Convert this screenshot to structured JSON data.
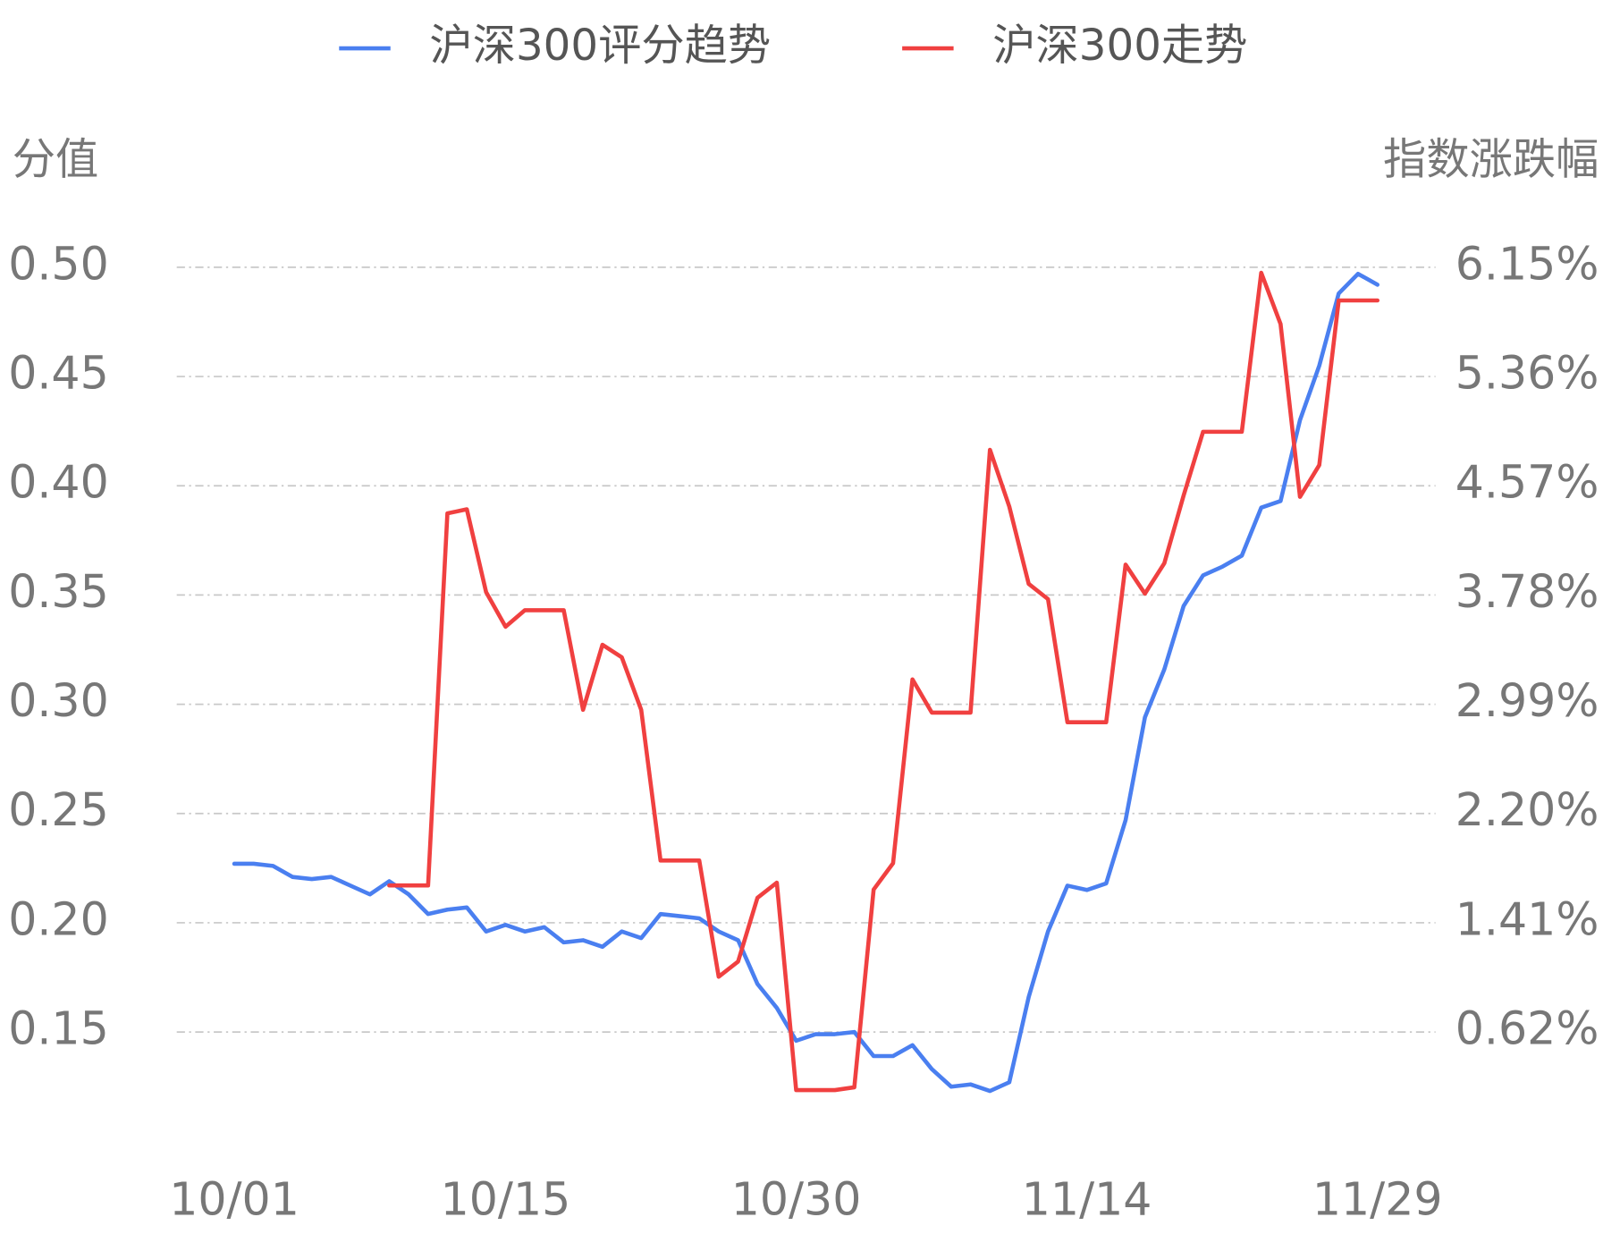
{
  "chart_data": {
    "type": "line",
    "ylabel": "分值",
    "y2label": "指数涨跌幅",
    "categories": [
      "10/01",
      null,
      null,
      null,
      null,
      null,
      null,
      null,
      null,
      null,
      null,
      null,
      null,
      null,
      "10/15",
      null,
      null,
      null,
      null,
      null,
      null,
      null,
      null,
      null,
      null,
      null,
      null,
      null,
      null,
      "10/30",
      null,
      null,
      null,
      null,
      null,
      null,
      null,
      null,
      null,
      null,
      null,
      null,
      null,
      null,
      "11/14",
      null,
      null,
      null,
      null,
      null,
      null,
      null,
      null,
      null,
      null,
      null,
      null,
      null,
      null,
      "11/29"
    ],
    "series": [
      {
        "name": "沪深300评分趋势",
        "color": "#4a7ff0",
        "axis": "y",
        "values": [
          0.227,
          0.227,
          0.226,
          0.221,
          0.22,
          0.221,
          0.217,
          0.213,
          0.219,
          0.213,
          0.204,
          0.206,
          0.207,
          0.196,
          0.199,
          0.196,
          0.198,
          0.191,
          0.192,
          0.189,
          0.196,
          0.193,
          0.204,
          0.203,
          0.202,
          0.196,
          0.192,
          0.172,
          0.161,
          0.146,
          0.149,
          0.149,
          0.15,
          0.139,
          0.139,
          0.144,
          0.133,
          0.125,
          0.126,
          0.123,
          0.127,
          0.166,
          0.196,
          0.217,
          0.215,
          0.218,
          0.247,
          0.294,
          0.316,
          0.345,
          0.359,
          0.363,
          0.368,
          0.39,
          0.393,
          0.43,
          0.455,
          0.488,
          0.497,
          0.492
        ]
      },
      {
        "name": "沪深300走势",
        "color": "#f04040",
        "axis": "y2",
        "values": [
          null,
          null,
          null,
          null,
          null,
          null,
          null,
          null,
          1.68,
          1.68,
          1.68,
          4.37,
          4.4,
          3.8,
          3.55,
          3.67,
          3.67,
          3.67,
          2.95,
          3.42,
          3.33,
          2.95,
          1.86,
          1.86,
          1.86,
          1.02,
          1.13,
          1.59,
          1.7,
          0.2,
          0.2,
          0.2,
          0.22,
          1.65,
          1.84,
          3.17,
          2.93,
          2.93,
          2.93,
          4.83,
          4.42,
          3.86,
          3.75,
          2.86,
          2.86,
          2.86,
          4.0,
          3.79,
          4.01,
          4.5,
          4.96,
          4.96,
          4.96,
          6.11,
          5.74,
          4.49,
          4.72,
          5.91,
          5.91,
          5.91
        ]
      }
    ],
    "ylim": [
      0.1,
      0.5
    ],
    "yticks": [
      0.15,
      {
        "value": 0.2,
        "label": "0.20"
      },
      0.25,
      {
        "value": 0.3,
        "label": "0.30"
      },
      0.35,
      {
        "value": 0.4,
        "label": "0.40"
      },
      0.45,
      {
        "value": 0.5,
        "label": "0.50"
      }
    ],
    "y2lim": [
      -0.17,
      6.15
    ],
    "y2ticks": [
      {
        "value": 0.62,
        "label": "0.62%"
      },
      {
        "value": 1.41,
        "label": "1.41%"
      },
      {
        "value": 2.2,
        "label": "2.20%"
      },
      {
        "value": 2.99,
        "label": "2.99%"
      },
      {
        "value": 3.78,
        "label": "3.78%"
      },
      {
        "value": 4.57,
        "label": "4.57%"
      },
      {
        "value": 5.36,
        "label": "5.36%"
      },
      {
        "value": 6.15,
        "label": "6.15%"
      }
    ],
    "grid": true
  }
}
